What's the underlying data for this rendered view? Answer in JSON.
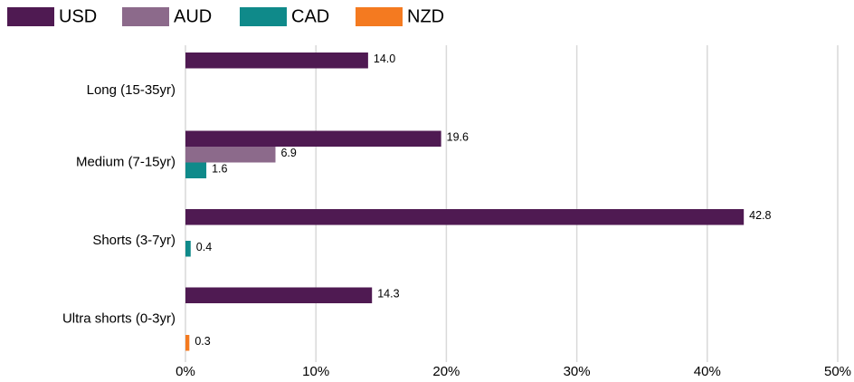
{
  "chart_data": {
    "type": "bar",
    "orientation": "horizontal",
    "categories": [
      "Long (15-35yr)",
      "Medium (7-15yr)",
      "Shorts (3-7yr)",
      "Ultra shorts (0-3yr)"
    ],
    "series": [
      {
        "name": "USD",
        "color": "#4f1a52",
        "values": [
          14.0,
          19.6,
          42.8,
          14.3
        ],
        "value_labels": [
          "14.0",
          "19.6",
          "42.8",
          "14.3"
        ]
      },
      {
        "name": "AUD",
        "color": "#8c6a8b",
        "values": [
          null,
          6.9,
          null,
          null
        ],
        "value_labels": [
          null,
          "6.9",
          null,
          null
        ]
      },
      {
        "name": "CAD",
        "color": "#0f8a8a",
        "values": [
          null,
          1.6,
          0.4,
          null
        ],
        "value_labels": [
          null,
          "1.6",
          "0.4",
          null
        ]
      },
      {
        "name": "NZD",
        "color": "#f47a20",
        "values": [
          null,
          null,
          null,
          0.3
        ],
        "value_labels": [
          null,
          null,
          null,
          "0.3"
        ]
      }
    ],
    "xlim": [
      0,
      50
    ],
    "xticks": [
      {
        "value": 0,
        "label": "0%"
      },
      {
        "value": 10,
        "label": "10%"
      },
      {
        "value": 20,
        "label": "20%"
      },
      {
        "value": 30,
        "label": "30%"
      },
      {
        "value": 40,
        "label": "40%"
      },
      {
        "value": 50,
        "label": "50%"
      }
    ],
    "grid": true,
    "legend": "top"
  }
}
